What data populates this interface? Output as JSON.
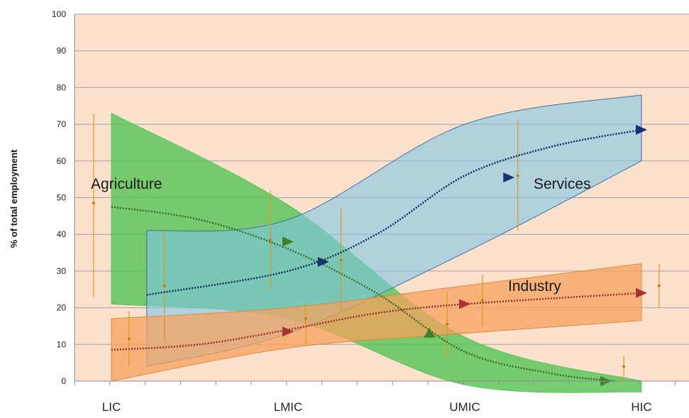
{
  "chart_data": {
    "type": "area",
    "ylabel": "% of total employment",
    "xlabel": "",
    "ylim": [
      0,
      100
    ],
    "yticks": [
      "0",
      "10",
      "20",
      "30",
      "40",
      "50",
      "60",
      "70",
      "80",
      "90",
      "100"
    ],
    "categories": [
      "LIC",
      "LMIC",
      "UMIC",
      "HIC"
    ],
    "grid": true,
    "series": [
      {
        "name": "Agriculture",
        "color": "#5ec45a",
        "band_x": [
          0.0,
          1.0,
          2.0,
          3.0
        ],
        "band_upper": [
          73,
          48,
          12,
          0
        ],
        "band_lower": [
          21,
          17,
          -1,
          -3
        ],
        "trend": [
          {
            "x": 0.0,
            "y": 47.5
          },
          {
            "x": 0.5,
            "y": 44
          },
          {
            "x": 1.0,
            "y": 36
          },
          {
            "x": 1.5,
            "y": 24
          },
          {
            "x": 2.0,
            "y": 8
          },
          {
            "x": 2.5,
            "y": 2
          },
          {
            "x": 2.85,
            "y": 0
          }
        ],
        "arrows": [
          {
            "x": 1.0,
            "y": 38
          },
          {
            "x": 1.8,
            "y": 13
          },
          {
            "x": 2.8,
            "y": 0
          }
        ]
      },
      {
        "name": "Services",
        "color": "#7ec6e8",
        "band_x": [
          0.2,
          1.0,
          2.0,
          3.0
        ],
        "band_upper": [
          41,
          44,
          70,
          78
        ],
        "band_lower": [
          4,
          13,
          35,
          60
        ],
        "trend": [
          {
            "x": 0.2,
            "y": 23.5
          },
          {
            "x": 1.0,
            "y": 30
          },
          {
            "x": 1.5,
            "y": 40
          },
          {
            "x": 2.0,
            "y": 56
          },
          {
            "x": 2.5,
            "y": 64
          },
          {
            "x": 3.0,
            "y": 68.5
          }
        ],
        "arrows": [
          {
            "x": 1.2,
            "y": 32.5
          },
          {
            "x": 2.25,
            "y": 55.5
          },
          {
            "x": 3.0,
            "y": 68.5
          }
        ]
      },
      {
        "name": "Industry",
        "color": "#f5a25d",
        "band_x": [
          0.0,
          1.0,
          2.0,
          3.0
        ],
        "band_upper": [
          17,
          20,
          26,
          32
        ],
        "band_lower": [
          0,
          9,
          13,
          16.5
        ],
        "trend": [
          {
            "x": 0.0,
            "y": 8.5
          },
          {
            "x": 0.5,
            "y": 10
          },
          {
            "x": 1.0,
            "y": 14
          },
          {
            "x": 1.5,
            "y": 18.5
          },
          {
            "x": 2.0,
            "y": 21
          },
          {
            "x": 3.0,
            "y": 24
          }
        ],
        "arrows": [
          {
            "x": 1.0,
            "y": 13.5
          },
          {
            "x": 2.0,
            "y": 21
          },
          {
            "x": 3.0,
            "y": 24
          }
        ]
      }
    ],
    "error_bars": [
      {
        "x": -0.1,
        "y": 48.5,
        "low": 23,
        "high": 73
      },
      {
        "x": 0.1,
        "y": 11.5,
        "low": 4,
        "high": 19
      },
      {
        "x": 0.3,
        "y": 26,
        "low": 11,
        "high": 41
      },
      {
        "x": 0.9,
        "y": 38.5,
        "low": 25,
        "high": 52
      },
      {
        "x": 1.1,
        "y": 17,
        "low": 10,
        "high": 21
      },
      {
        "x": 1.3,
        "y": 33,
        "low": 19,
        "high": 47
      },
      {
        "x": 1.9,
        "y": 15.5,
        "low": 6,
        "high": 24
      },
      {
        "x": 2.1,
        "y": 22,
        "low": 15,
        "high": 29
      },
      {
        "x": 2.3,
        "y": 56,
        "low": 41,
        "high": 71
      },
      {
        "x": 2.9,
        "y": 4,
        "low": 0,
        "high": 7
      },
      {
        "x": 3.1,
        "y": 26,
        "low": 20,
        "high": 32
      }
    ]
  }
}
